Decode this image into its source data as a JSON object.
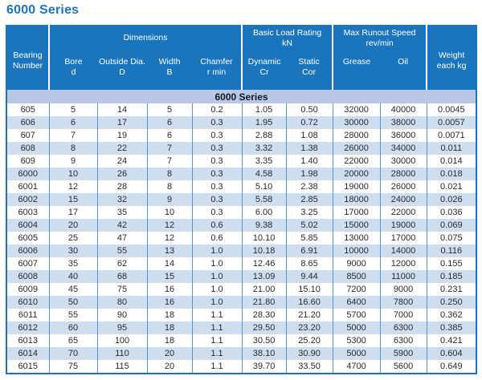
{
  "page_title": "6000 Series",
  "colors": {
    "accent_text": "#1b75bc",
    "header_bg": "#1b75bc",
    "subheader_bg": "#b9c7e6",
    "row_alt_bg": "#cfddf1",
    "divider": "#5494cd",
    "border": "#1b75bc"
  },
  "table": {
    "header": {
      "bearing": {
        "l1": "Bearing",
        "l2": "Number"
      },
      "groups": {
        "dimensions": {
          "l1": "Dimensions"
        },
        "load": {
          "l1": "Basic Load Rating",
          "l2": "kN"
        },
        "speed": {
          "l1": "Max Runout Speed",
          "l2": "rev/min"
        }
      },
      "columns": {
        "bore": {
          "l1": "Bore",
          "l2": "d"
        },
        "outside": {
          "l1": "Outside Dia.",
          "l2": "D"
        },
        "width": {
          "l1": "Width",
          "l2": "B"
        },
        "chamfer": {
          "l1": "Chamfer",
          "l2": "r min"
        },
        "dynamic": {
          "l1": "Dynamic",
          "l2": "Cr"
        },
        "static": {
          "l1": "Static",
          "l2": "Cor"
        },
        "grease": {
          "l1": "Grease"
        },
        "oil": {
          "l1": "Oil"
        }
      },
      "weight": {
        "l1": "Weight",
        "l2": "each kg"
      }
    },
    "section_label": "6000 Series",
    "column_keys": [
      "bearing_number",
      "bore_d",
      "outside_dia",
      "width_b",
      "chamfer_r_min",
      "dynamic_cr",
      "static_cor",
      "grease",
      "oil",
      "weight_each_kg"
    ],
    "rows": [
      [
        "605",
        "5",
        "14",
        "5",
        "0.2",
        "1.05",
        "0.50",
        "32000",
        "40000",
        "0.0045"
      ],
      [
        "606",
        "6",
        "17",
        "6",
        "0.3",
        "1.95",
        "0.72",
        "30000",
        "38000",
        "0.0057"
      ],
      [
        "607",
        "7",
        "19",
        "6",
        "0.3",
        "2.88",
        "1.08",
        "28000",
        "36000",
        "0.0071"
      ],
      [
        "608",
        "8",
        "22",
        "7",
        "0.3",
        "3.32",
        "1.38",
        "26000",
        "34000",
        "0.011"
      ],
      [
        "609",
        "9",
        "24",
        "7",
        "0.3",
        "3.35",
        "1.40",
        "22000",
        "30000",
        "0.014"
      ],
      [
        "6000",
        "10",
        "26",
        "8",
        "0.3",
        "4.58",
        "1.98",
        "20000",
        "28000",
        "0.018"
      ],
      [
        "6001",
        "12",
        "28",
        "8",
        "0.3",
        "5.10",
        "2.38",
        "19000",
        "26000",
        "0.021"
      ],
      [
        "6002",
        "15",
        "32",
        "9",
        "0.3",
        "5.58",
        "2.85",
        "18000",
        "24000",
        "0.026"
      ],
      [
        "6003",
        "17",
        "35",
        "10",
        "0.3",
        "6.00",
        "3.25",
        "17000",
        "22000",
        "0.036"
      ],
      [
        "6004",
        "20",
        "42",
        "12",
        "0.6",
        "9.38",
        "5.02",
        "15000",
        "19000",
        "0.069"
      ],
      [
        "6005",
        "25",
        "47",
        "12",
        "0.6",
        "10.10",
        "5.85",
        "13000",
        "17000",
        "0.075"
      ],
      [
        "6006",
        "30",
        "55",
        "13",
        "1.0",
        "10.18",
        "6.91",
        "10000",
        "14000",
        "0.116"
      ],
      [
        "6007",
        "35",
        "62",
        "14",
        "1.0",
        "12.46",
        "8.65",
        "9000",
        "12000",
        "0.155"
      ],
      [
        "6008",
        "40",
        "68",
        "15",
        "1.0",
        "13.09",
        "9.44",
        "8500",
        "11000",
        "0.185"
      ],
      [
        "6009",
        "45",
        "75",
        "16",
        "1.0",
        "21.00",
        "15.10",
        "7200",
        "9000",
        "0.231"
      ],
      [
        "6010",
        "50",
        "80",
        "16",
        "1.0",
        "21.80",
        "16.60",
        "6400",
        "7800",
        "0.250"
      ],
      [
        "6011",
        "55",
        "90",
        "18",
        "1.1",
        "28.30",
        "21.20",
        "5700",
        "7000",
        "0.362"
      ],
      [
        "6012",
        "60",
        "95",
        "18",
        "1.1",
        "29.50",
        "23.20",
        "5000",
        "6300",
        "0.385"
      ],
      [
        "6013",
        "65",
        "100",
        "18",
        "1.1",
        "30.50",
        "25.20",
        "5300",
        "6300",
        "0.421"
      ],
      [
        "6014",
        "70",
        "110",
        "20",
        "1.1",
        "38.10",
        "30.90",
        "5000",
        "5900",
        "0.604"
      ],
      [
        "6015",
        "75",
        "115",
        "20",
        "1.1",
        "39.70",
        "33.50",
        "4700",
        "5600",
        "0.649"
      ]
    ]
  }
}
